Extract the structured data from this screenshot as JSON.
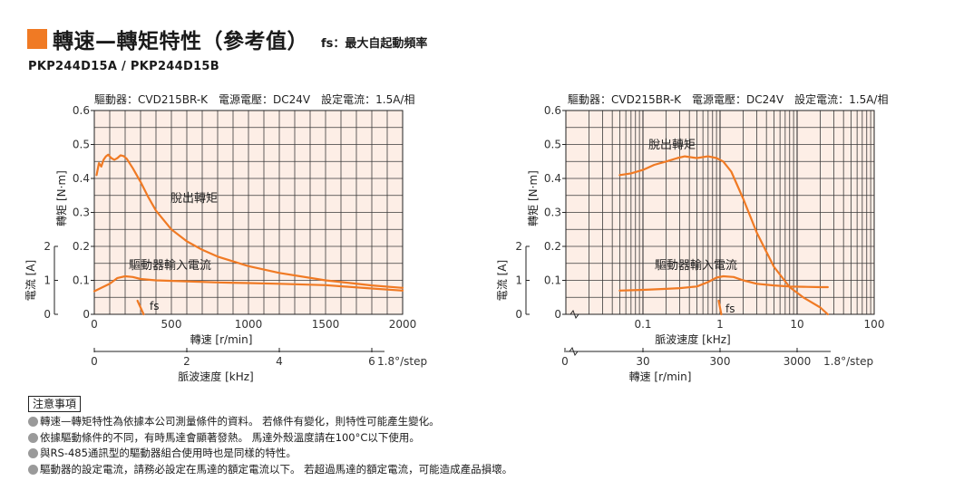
{
  "header": {
    "title": "轉速—轉矩特性（參考值）",
    "subtitle": "fs：最大自起動頻率"
  },
  "model": "PKP244D15A / PKP244D15B",
  "colors": {
    "accent": "#f07a24",
    "curve": "#f07a24",
    "grid": "#3a3a3a",
    "plot_bg": "#fdeee6"
  },
  "chart_data": [
    {
      "type": "line",
      "info": "驅動器：CVD215BR-K　電源電壓：DC24V　設定電流：1.5A/相",
      "xlabel": "轉速 [r/min]",
      "ylabel": "轉矩 [N·m]",
      "y2label": "電流 [A]",
      "x2label": "脈波速度 [kHz]",
      "x_scale": "linear",
      "xlim": [
        0,
        2000
      ],
      "ylim": [
        0,
        0.6
      ],
      "x_ticks": [
        "0",
        "500",
        "1000",
        "1500",
        "2000"
      ],
      "y_ticks": [
        "0",
        "0.1",
        "0.2",
        "0.3",
        "0.4",
        "0.5",
        "0.6"
      ],
      "y2_ticks": [
        "0",
        "1",
        "2"
      ],
      "x2_ticks": [
        "0",
        "2",
        "4",
        "6"
      ],
      "x2_unit": "1.8°/step",
      "fs_label": "fs",
      "series": [
        {
          "name": "脫出轉矩",
          "x": [
            15,
            30,
            45,
            60,
            75,
            90,
            110,
            130,
            150,
            170,
            190,
            210,
            250,
            300,
            350,
            400,
            500,
            600,
            700,
            800,
            1000,
            1200,
            1500,
            1800,
            2000
          ],
          "y": [
            0.41,
            0.445,
            0.435,
            0.455,
            0.465,
            0.47,
            0.46,
            0.455,
            0.46,
            0.468,
            0.466,
            0.458,
            0.43,
            0.39,
            0.345,
            0.305,
            0.25,
            0.215,
            0.19,
            0.17,
            0.142,
            0.122,
            0.1,
            0.085,
            0.078
          ]
        },
        {
          "name": "驅動器輸入電流",
          "x": [
            0,
            100,
            150,
            200,
            250,
            300,
            400,
            600,
            800,
            1000,
            1200,
            1500,
            1800,
            2000
          ],
          "y": [
            0.068,
            0.09,
            0.107,
            0.112,
            0.11,
            0.104,
            0.1,
            0.097,
            0.094,
            0.092,
            0.09,
            0.086,
            0.076,
            0.07
          ]
        },
        {
          "name": "fs",
          "x": [
            280,
            320
          ],
          "y": [
            0.04,
            0.0
          ]
        }
      ]
    },
    {
      "type": "line",
      "info": "驅動器：CVD215BR-K　電源電壓：DC24V　設定電流：1.5A/相",
      "xlabel": "脈波速度 [kHz]",
      "ylabel": "轉矩 [N·m]",
      "y2label": "電流 [A]",
      "x2label": "轉速 [r/min]",
      "x_scale": "log",
      "xlim": [
        0.01,
        100
      ],
      "ylim": [
        0,
        0.6
      ],
      "x_ticks": [
        "0.1",
        "1",
        "10",
        "100"
      ],
      "y_ticks": [
        "0",
        "0.1",
        "0.2",
        "0.3",
        "0.4",
        "0.5",
        "0.6"
      ],
      "y2_ticks": [
        "0",
        "1",
        "2"
      ],
      "x2_ticks": [
        "0",
        "30",
        "300",
        "3000"
      ],
      "x2_unit": "1.8°/step",
      "fs_label": "fs",
      "series": [
        {
          "name": "脫出轉矩",
          "x": [
            0.05,
            0.07,
            0.1,
            0.14,
            0.2,
            0.28,
            0.35,
            0.5,
            0.7,
            0.9,
            1.1,
            1.4,
            2,
            3,
            5,
            8,
            12,
            20,
            25
          ],
          "y": [
            0.41,
            0.415,
            0.425,
            0.44,
            0.45,
            0.46,
            0.465,
            0.46,
            0.465,
            0.46,
            0.45,
            0.42,
            0.34,
            0.24,
            0.14,
            0.08,
            0.05,
            0.02,
            0.0
          ]
        },
        {
          "name": "驅動器輸入電流",
          "x": [
            0.05,
            0.1,
            0.2,
            0.3,
            0.5,
            0.7,
            0.9,
            1.1,
            1.5,
            2,
            3,
            5,
            8,
            12,
            20,
            25
          ],
          "y": [
            0.07,
            0.072,
            0.075,
            0.077,
            0.082,
            0.095,
            0.108,
            0.112,
            0.11,
            0.1,
            0.09,
            0.085,
            0.082,
            0.081,
            0.08,
            0.08
          ]
        },
        {
          "name": "fs",
          "x": [
            0.96,
            1.04
          ],
          "y": [
            0.04,
            0.0
          ]
        }
      ]
    }
  ],
  "curve_labels": {
    "pullout": "脫出轉矩",
    "current": "驅動器輸入電流"
  },
  "notes": {
    "heading": "注意事項",
    "items": [
      "轉速—轉矩特性為依據本公司測量條件的資料。 若條件有變化，則特性可能產生變化。",
      "依據驅動條件的不同，有時馬達會顯著發熱。 馬達外殼溫度請在100°C以下使用。",
      "與RS-485通訊型的驅動器組合使用時也是同樣的特性。",
      "驅動器的設定電流，請務必設定在馬達的額定電流以下。 若超過馬達的額定電流，可能造成產品損壞。"
    ]
  }
}
